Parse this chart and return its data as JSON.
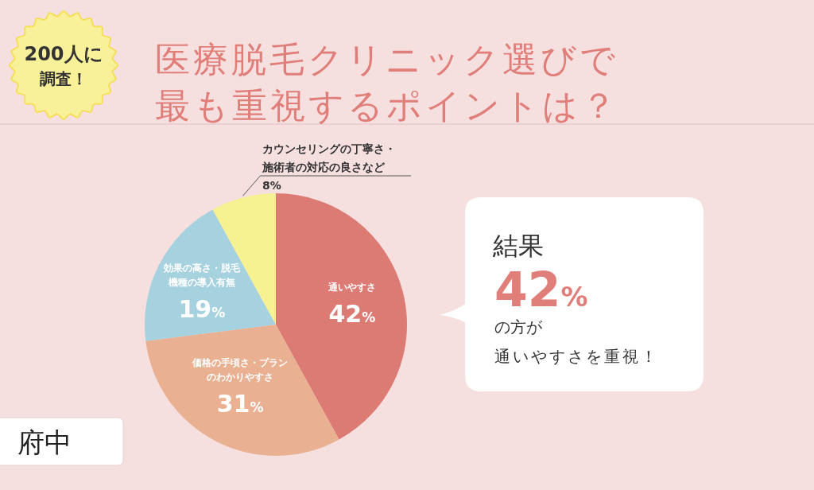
{
  "chart_data": {
    "type": "pie",
    "title": "医療脱毛クリニック選びで最も重視するポイントは？",
    "categories": [
      "通いやすさ",
      "価格の手頃さ・プランのわかりやすさ",
      "効果の高さ・脱毛機種の導入有無",
      "カウンセリングの丁寧さ・施術者の対応の良さなど"
    ],
    "values": [
      42,
      31,
      19,
      8
    ],
    "colors": [
      "#dc7b74",
      "#e9b092",
      "#a6d1df",
      "#f7f291"
    ],
    "value_labels": [
      "42%",
      "31%",
      "19%",
      "8%"
    ],
    "annotations": [
      "200人に調査！",
      "府中",
      "結果",
      "42%",
      "の方が",
      "通いやすさを重視！"
    ]
  }
}
